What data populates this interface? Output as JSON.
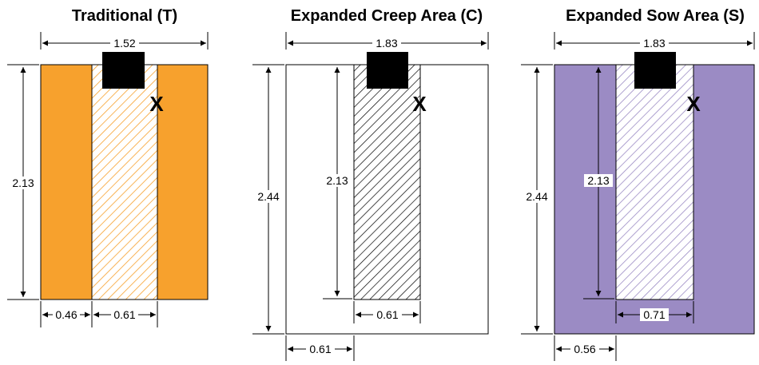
{
  "colors": {
    "traditional": "#F7A12D",
    "sow": "#9B8BC4",
    "hatch_orange": "#F7A12D",
    "hatch_black": "#000000",
    "hatch_purple": "#9B8BC4"
  },
  "panels": {
    "traditional": {
      "title": "Traditional (T)",
      "width_label": "1.52",
      "height_label": "2.13",
      "left_label": "0.46",
      "center_label": "0.61",
      "marker": "X"
    },
    "creep": {
      "title": "Expanded Creep Area (C)",
      "width_label": "1.83",
      "height_label": "2.44",
      "inner_height_label": "2.13",
      "inner_width_label": "0.61",
      "left_label": "0.61",
      "marker": "X"
    },
    "sow": {
      "title": "Expanded Sow Area (S)",
      "width_label": "1.83",
      "height_label": "2.44",
      "inner_height_label": "2.13",
      "inner_width_label": "0.71",
      "left_label": "0.56",
      "marker": "X"
    }
  }
}
